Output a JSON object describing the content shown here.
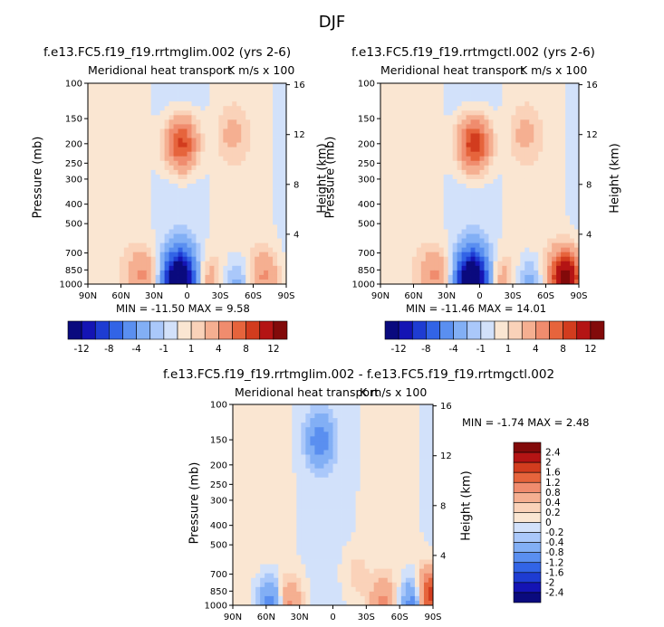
{
  "season_title": "DJF",
  "panels": [
    {
      "id": "left",
      "title": "f.e13.FC5.f19_f19.rrtmglim.002 (yrs 2-6)",
      "subtitle_left": "Meridional heat transport",
      "subtitle_right": "K m/s x 100",
      "ylabel": "Pressure (mb)",
      "ylabel_right": "Height (km)",
      "stats": "MIN = -11.50   MAX =   9.58"
    },
    {
      "id": "right",
      "title": "f.e13.FC5.f19_f19.rrtmgctl.002 (yrs 2-6)",
      "subtitle_left": "Meridional heat transport",
      "subtitle_right": "K m/s x 100",
      "ylabel": "Pressure (mb)",
      "ylabel_right": "Height (km)",
      "stats": "MIN = -11.46   MAX =  14.01"
    },
    {
      "id": "diff",
      "title": "f.e13.FC5.f19_f19.rrtmglim.002 - f.e13.FC5.f19_f19.rrtmgctl.002",
      "subtitle_left": "Meridional heat transport",
      "subtitle_right": "K m/s x 100",
      "ylabel": "Pressure (mb)",
      "ylabel_right": "Height (km)",
      "stats": "MIN =   -1.74   MAX =    2.48"
    }
  ],
  "chart_data": [
    {
      "type": "heatmap",
      "title": "f.e13.FC5.f19_f19.rrtmglim.002 (yrs 2-6)",
      "subtitle": "Meridional heat transport  K m/s x 100",
      "xlabel": "",
      "ylabel": "Pressure (mb)",
      "ylabel_right": "Height (km)",
      "x_ticks": [
        "90N",
        "60N",
        "30N",
        "0",
        "30S",
        "60S",
        "90S"
      ],
      "y_ticks": [
        "100",
        "150",
        "200",
        "250",
        "300",
        "400",
        "500",
        "700",
        "850",
        "1000"
      ],
      "y_ticks_right": [
        "16",
        "12",
        "8",
        "4"
      ],
      "xlim": [
        90,
        -90
      ],
      "ylim": [
        1000,
        100
      ],
      "min": -11.5,
      "max": 9.58,
      "features": [
        {
          "lat": 5,
          "p": 200,
          "value": 9
        },
        {
          "lat": 8,
          "p": 980,
          "value": -11.5
        },
        {
          "lat": 5,
          "p": 850,
          "value": -6
        },
        {
          "lat": 40,
          "p": 900,
          "value": 4
        },
        {
          "lat": -20,
          "p": 950,
          "value": 3
        },
        {
          "lat": -70,
          "p": 920,
          "value": 4
        },
        {
          "lat": -45,
          "p": 980,
          "value": -3
        },
        {
          "lat": -40,
          "p": 180,
          "value": 2
        }
      ]
    },
    {
      "type": "heatmap",
      "title": "f.e13.FC5.f19_f19.rrtmgctl.002 (yrs 2-6)",
      "subtitle": "Meridional heat transport  K m/s x 100",
      "xlabel": "",
      "ylabel": "Pressure (mb)",
      "ylabel_right": "Height (km)",
      "x_ticks": [
        "90N",
        "60N",
        "30N",
        "0",
        "30S",
        "60S",
        "90S"
      ],
      "y_ticks": [
        "100",
        "150",
        "200",
        "250",
        "300",
        "400",
        "500",
        "700",
        "850",
        "1000"
      ],
      "y_ticks_right": [
        "16",
        "12",
        "8",
        "4"
      ],
      "xlim": [
        90,
        -90
      ],
      "ylim": [
        1000,
        100
      ],
      "min": -11.46,
      "max": 14.01,
      "features": [
        {
          "lat": 5,
          "p": 200,
          "value": 10
        },
        {
          "lat": 8,
          "p": 980,
          "value": -11.46
        },
        {
          "lat": 5,
          "p": 850,
          "value": -6
        },
        {
          "lat": 40,
          "p": 900,
          "value": 4
        },
        {
          "lat": -20,
          "p": 950,
          "value": 3
        },
        {
          "lat": -78,
          "p": 930,
          "value": 14.01
        },
        {
          "lat": -45,
          "p": 980,
          "value": -3
        },
        {
          "lat": -40,
          "p": 180,
          "value": 2
        }
      ]
    },
    {
      "type": "heatmap",
      "title": "f.e13.FC5.f19_f19.rrtmglim.002 - f.e13.FC5.f19_f19.rrtmgctl.002",
      "subtitle": "Meridional heat transport  K m/s x 100",
      "xlabel": "",
      "ylabel": "Pressure (mb)",
      "ylabel_right": "Height (km)",
      "x_ticks": [
        "90N",
        "60N",
        "30N",
        "0",
        "30S",
        "60S",
        "90S"
      ],
      "y_ticks": [
        "100",
        "150",
        "200",
        "250",
        "300",
        "400",
        "500",
        "700",
        "850",
        "1000"
      ],
      "y_ticks_right": [
        "16",
        "12",
        "8",
        "4"
      ],
      "xlim": [
        90,
        -90
      ],
      "ylim": [
        1000,
        100
      ],
      "min": -1.74,
      "max": 2.48,
      "features": [
        {
          "lat": 55,
          "p": 980,
          "value": -1.2
        },
        {
          "lat": 40,
          "p": 980,
          "value": 1.0
        },
        {
          "lat": 12,
          "p": 150,
          "value": -1.0
        },
        {
          "lat": -45,
          "p": 990,
          "value": 0.8
        },
        {
          "lat": -85,
          "p": 900,
          "value": 2.48
        },
        {
          "lat": -75,
          "p": 970,
          "value": -1.74
        },
        {
          "lat": -20,
          "p": 700,
          "value": 0.3
        }
      ]
    }
  ],
  "colorbar_main": {
    "labels": [
      "-12",
      "-8",
      "-4",
      "-1",
      "1",
      "4",
      "8",
      "12"
    ],
    "colors": [
      "#0a0a7e",
      "#1414b4",
      "#1e3cd2",
      "#3264e6",
      "#5a8ff0",
      "#82aff5",
      "#aac8fa",
      "#d2e1fa",
      "#fae6d2",
      "#fad2b9",
      "#f5af91",
      "#f08c6e",
      "#e6643c",
      "#d23c1e",
      "#b41414",
      "#820a0a"
    ]
  },
  "colorbar_diff": {
    "labels": [
      "2.4",
      "2",
      "1.6",
      "1.2",
      "0.8",
      "0.4",
      "0.2",
      "0",
      "-0.2",
      "-0.4",
      "-0.8",
      "-1.2",
      "-1.6",
      "-2",
      "-2.4"
    ],
    "colors": [
      "#820a0a",
      "#b41414",
      "#d23c1e",
      "#e6643c",
      "#f08c6e",
      "#f5af91",
      "#fad2b9",
      "#fae6d2",
      "#d2e1fa",
      "#aac8fa",
      "#82aff5",
      "#5a8ff0",
      "#3264e6",
      "#1e3cd2",
      "#1414b4",
      "#0a0a7e"
    ]
  }
}
